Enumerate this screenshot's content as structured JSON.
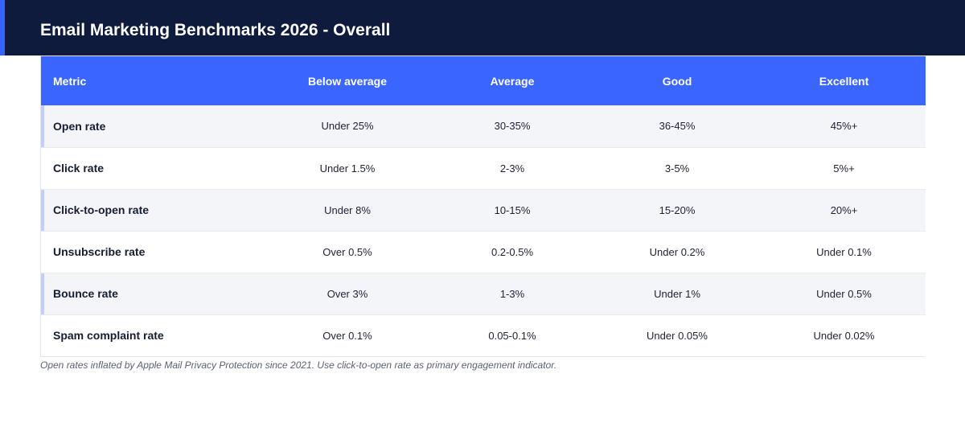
{
  "header": {
    "title": "Email Marketing Benchmarks 2026 - Overall",
    "background_color": "#0f1b3d",
    "accent_color": "#3563ff"
  },
  "table": {
    "header_color": "#3a66ff",
    "columns": [
      "Metric",
      "Below average",
      "Average",
      "Good",
      "Excellent"
    ],
    "rows": [
      {
        "metric": "Open rate",
        "below_average": "Under 25%",
        "average": "30-35%",
        "good": "36-45%",
        "excellent": "45%+"
      },
      {
        "metric": "Click rate",
        "below_average": "Under 1.5%",
        "average": "2-3%",
        "good": "3-5%",
        "excellent": "5%+"
      },
      {
        "metric": "Click-to-open rate",
        "below_average": "Under 8%",
        "average": "10-15%",
        "good": "15-20%",
        "excellent": "20%+"
      },
      {
        "metric": "Unsubscribe rate",
        "below_average": "Over 0.5%",
        "average": "0.2-0.5%",
        "good": "Under 0.2%",
        "excellent": "Under 0.1%"
      },
      {
        "metric": "Bounce rate",
        "below_average": "Over 3%",
        "average": "1-3%",
        "good": "Under 1%",
        "excellent": "Under 0.5%"
      },
      {
        "metric": "Spam complaint rate",
        "below_average": "Over 0.1%",
        "average": "0.05-0.1%",
        "good": "Under 0.05%",
        "excellent": "Under 0.02%"
      }
    ]
  },
  "footnote": "Open rates inflated by Apple Mail Privacy Protection since 2021. Use click-to-open rate as primary engagement indicator."
}
